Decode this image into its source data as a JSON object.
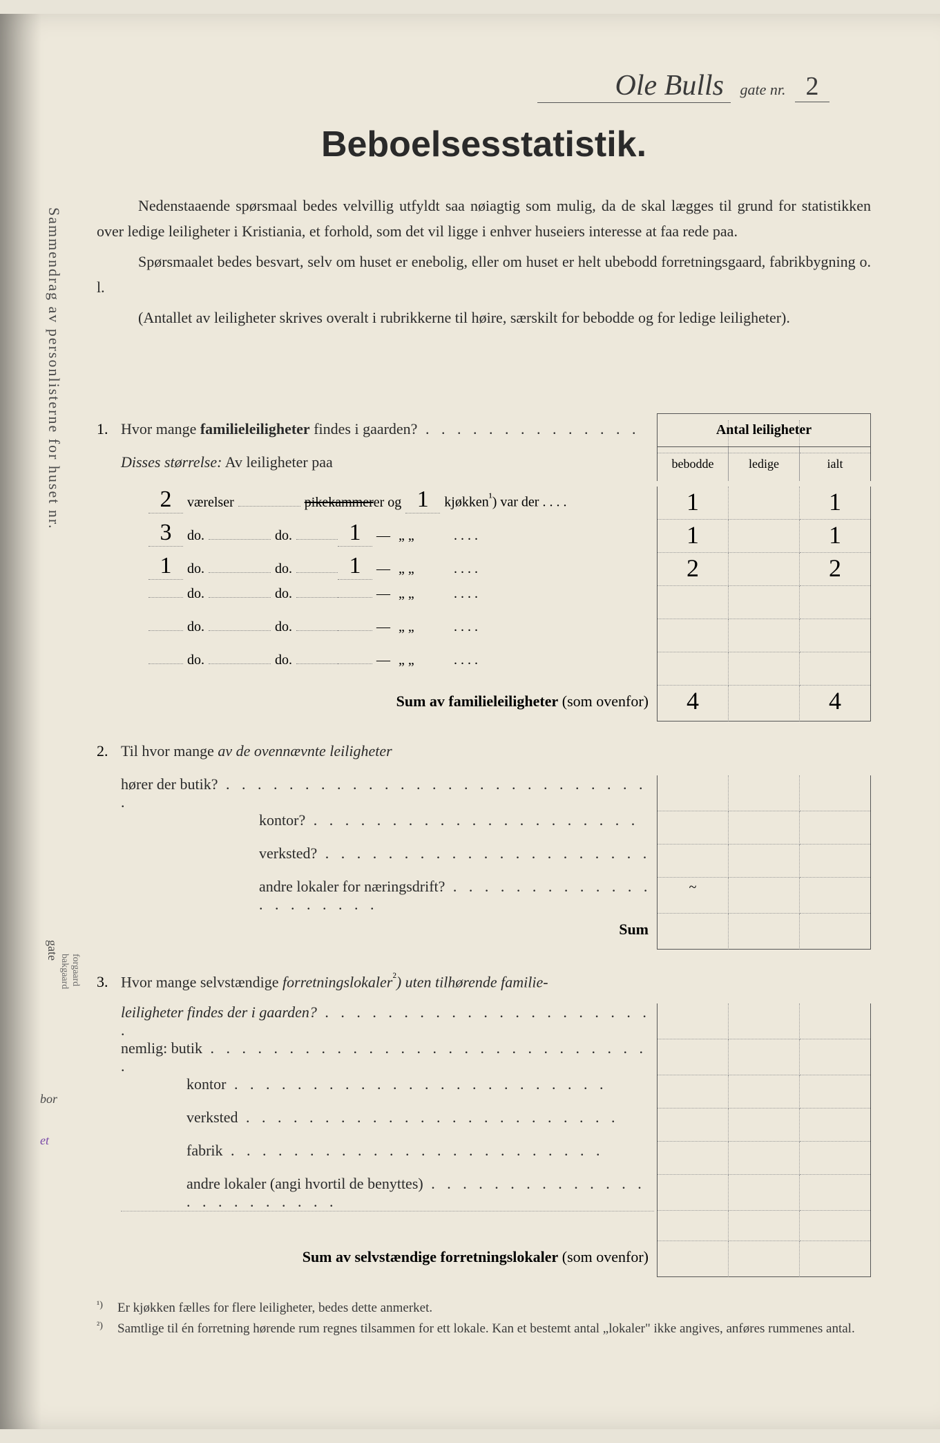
{
  "header": {
    "street_name": "Ole Bulls",
    "gate_label": "gate nr.",
    "gate_nr": "2"
  },
  "title": "Beboelsesstatistik.",
  "intro": {
    "p1": "Nedenstaaende spørsmaal bedes velvillig utfyldt saa nøiagtig som mulig, da de skal lægges til grund for statistikken over ledige leiligheter i Kristiania, et forhold, som det vil ligge i enhver huseiers interesse at faa rede paa.",
    "p2": "Spørsmaalet bedes besvart, selv om huset er enebolig, eller om huset er helt ubebodd forretningsgaard, fabrikbygning o. l.",
    "p3": "(Antallet av leiligheter skrives overalt i rubrikkerne til høire, særskilt for bebodde og for ledige leiligheter)."
  },
  "table_header": {
    "title": "Antal leiligheter",
    "col1": "bebodde",
    "col2": "ledige",
    "col3": "ialt"
  },
  "q1": {
    "num": "1.",
    "text": "Hvor mange ",
    "bold": "familieleiligheter",
    "text2": " findes i gaarden?",
    "subtitle": "Disses størrelse:",
    "subtitle2": " Av leiligheter paa",
    "rows": [
      {
        "vaer": "2",
        "label1": "værelser",
        "pike": "pikekammer",
        "og": " og",
        "kjok": "1",
        "kjok_label": "kjøkken",
        "sup": "¹",
        "tail": ") var der . . . .",
        "bebodde": "1",
        "ledige": "",
        "ialt": "1"
      },
      {
        "vaer": "3",
        "label1": "do.",
        "do2": "do.",
        "kjok": "1",
        "dash": "—",
        "ditto": "„      „",
        "tail": " . . . .",
        "bebodde": "1",
        "ledige": "",
        "ialt": "1"
      },
      {
        "vaer": "1",
        "label1": "do.",
        "do2": "do.",
        "kjok": "1",
        "dash": "—",
        "ditto": "„      „",
        "tail": " . . . .",
        "bebodde": "2",
        "ledige": "",
        "ialt": "2"
      },
      {
        "vaer": "",
        "label1": "do.",
        "do2": "do.",
        "kjok": "",
        "dash": "—",
        "ditto": "„      „",
        "tail": " . . . .",
        "bebodde": "",
        "ledige": "",
        "ialt": ""
      },
      {
        "vaer": "",
        "label1": "do.",
        "do2": "do.",
        "kjok": "",
        "dash": "—",
        "ditto": "„      „",
        "tail": " . . . .",
        "bebodde": "",
        "ledige": "",
        "ialt": ""
      },
      {
        "vaer": "",
        "label1": "do.",
        "do2": "do.",
        "kjok": "",
        "dash": "—",
        "ditto": "„      „",
        "tail": " . . . .",
        "bebodde": "",
        "ledige": "",
        "ialt": ""
      }
    ],
    "sum_label": "Sum av familieleiligheter",
    "sum_paren": " (som ovenfor)",
    "sum_bebodde": "4",
    "sum_ledige": "",
    "sum_ialt": "4"
  },
  "q2": {
    "num": "2.",
    "line1a": "Til hvor mange ",
    "line1b": "av de ovennævnte leiligheter",
    "line2": "hører der  butik?",
    "items": [
      "kontor?",
      "verksted?",
      "andre lokaler for næringsdrift?"
    ],
    "sum": "Sum",
    "mark": "~"
  },
  "q3": {
    "num": "3.",
    "line1a": "Hvor mange selvstændige ",
    "line1b": "forretningslokaler",
    "sup": "²",
    "line1c": ") uten tilhørende familie-",
    "line2a": "leiligheter findes der i gaarden?",
    "nemlig": "nemlig:",
    "items": [
      "butik",
      "kontor",
      "verksted",
      "fabrik",
      "andre lokaler (angi hvortil de benyttes)"
    ],
    "sum_label": "Sum av selvstændige forretningslokaler",
    "sum_paren": " (som ovenfor)"
  },
  "footnotes": {
    "f1_mark": "¹)",
    "f1": "Er kjøkken fælles for flere leiligheter, bedes dette anmerket.",
    "f2_mark": "²)",
    "f2": "Samtlige til én forretning hørende rum regnes tilsammen for ett lokale.  Kan et bestemt antal „lokaler\" ikke angives, anføres rummenes antal."
  },
  "margins": {
    "vertical1": "Sammendrag av personlisterne for huset nr.",
    "vertical2": "gate",
    "vertical3a": "forgaard",
    "vertical3b": "bakgaard",
    "bor": "bor",
    "et": "et"
  }
}
